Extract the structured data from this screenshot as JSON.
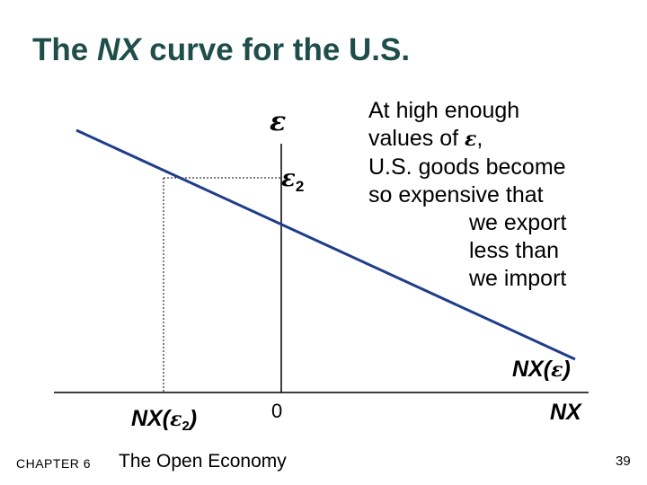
{
  "title": {
    "prefix": "The ",
    "italic": "NX",
    "suffix": " curve for the U.S."
  },
  "axes": {
    "y_label": "ε",
    "x_label": "NX",
    "origin_label": "0"
  },
  "marks": {
    "eps2_symbol": "ε",
    "eps2_sub": "2",
    "nx_eps2_prefix": "NX(",
    "nx_eps2_symbol": "ε",
    "nx_eps2_sub": "2",
    "nx_eps2_suffix": ")"
  },
  "curve": {
    "label_prefix": "NX(",
    "label_symbol": "ε",
    "label_suffix": ")",
    "color": "#1f3d8a"
  },
  "annotation": {
    "line1": "At high enough",
    "line2_prefix": "values of ",
    "line2_symbol": "ε",
    "line2_suffix": ",",
    "line3": "U.S. goods become",
    "line4": "so expensive that",
    "line5": "we export",
    "line6": "less than",
    "line7": "we import"
  },
  "footer": {
    "chapter": "CHAPTER 6",
    "book": "The Open Economy",
    "page": "39"
  },
  "colors": {
    "title": "#1f4e4a",
    "curve": "#1f3d8a",
    "axes": "#000000",
    "guides": "#000000"
  }
}
